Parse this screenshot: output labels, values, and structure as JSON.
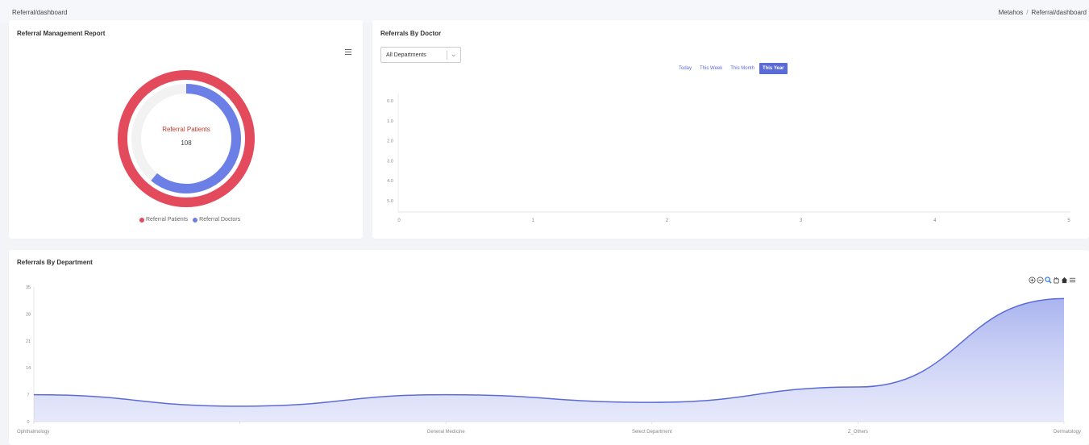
{
  "breadcrumb": {
    "left": "Referral/dashboard",
    "right_home": "Metahos",
    "right_separator": "/",
    "right_current": "Referral/dashboard"
  },
  "report_card": {
    "title": "Referral Management Report",
    "menu_icon": "hamburger-menu-icon",
    "center_label": "Referral Patients",
    "center_value": "108",
    "legend": [
      {
        "label": "Referral Patients",
        "color": "#e34a5c"
      },
      {
        "label": "Referral Doctors",
        "color": "#6b7fe6"
      }
    ]
  },
  "doctor_card": {
    "title": "Referrals By Doctor",
    "select_value": "All Departments",
    "ranges": [
      "Today",
      "This Week",
      "This Month",
      "This Year"
    ],
    "active_range": "This Year"
  },
  "dept_card": {
    "title": "Referrals By Department",
    "toolbar_icons": [
      "zoom-in-icon",
      "zoom-out-icon",
      "magnifier-icon",
      "pan-hand-icon",
      "home-icon",
      "menu-icon"
    ]
  },
  "chart_data": [
    {
      "type": "pie",
      "title": "Referral Management Report",
      "series": [
        {
          "name": "Referral Patients",
          "values": [
            108
          ],
          "max": 108,
          "color": "#e34a5c"
        },
        {
          "name": "Referral Doctors",
          "values": [
            66
          ],
          "max": 108,
          "color": "#6b7fe6"
        }
      ]
    },
    {
      "type": "bar",
      "title": "Referrals By Doctor",
      "y_ticks": [
        "0.0",
        "1.0",
        "2.0",
        "3.0",
        "4.0",
        "5.0"
      ],
      "x_ticks": [
        "0",
        "1",
        "2",
        "3",
        "4",
        "5"
      ],
      "xlim": [
        0,
        5
      ],
      "ylim": [
        0,
        5
      ],
      "categories": [],
      "values": []
    },
    {
      "type": "area",
      "title": "Referrals By Department",
      "categories": [
        "Ophthalmology",
        "",
        "General Medicine",
        "Select Department",
        "Z_Others",
        "Dermatology"
      ],
      "x_labels_shown": [
        "Ophthalmology",
        "General Medicine",
        "Select Department",
        "Z_Others",
        "Dermatology"
      ],
      "values": [
        7,
        4,
        7,
        5,
        9,
        32
      ],
      "y_ticks": [
        "0",
        "7",
        "14",
        "21",
        "28",
        "35"
      ],
      "ylim": [
        0,
        35
      ],
      "color": "#5b6bd6"
    }
  ]
}
